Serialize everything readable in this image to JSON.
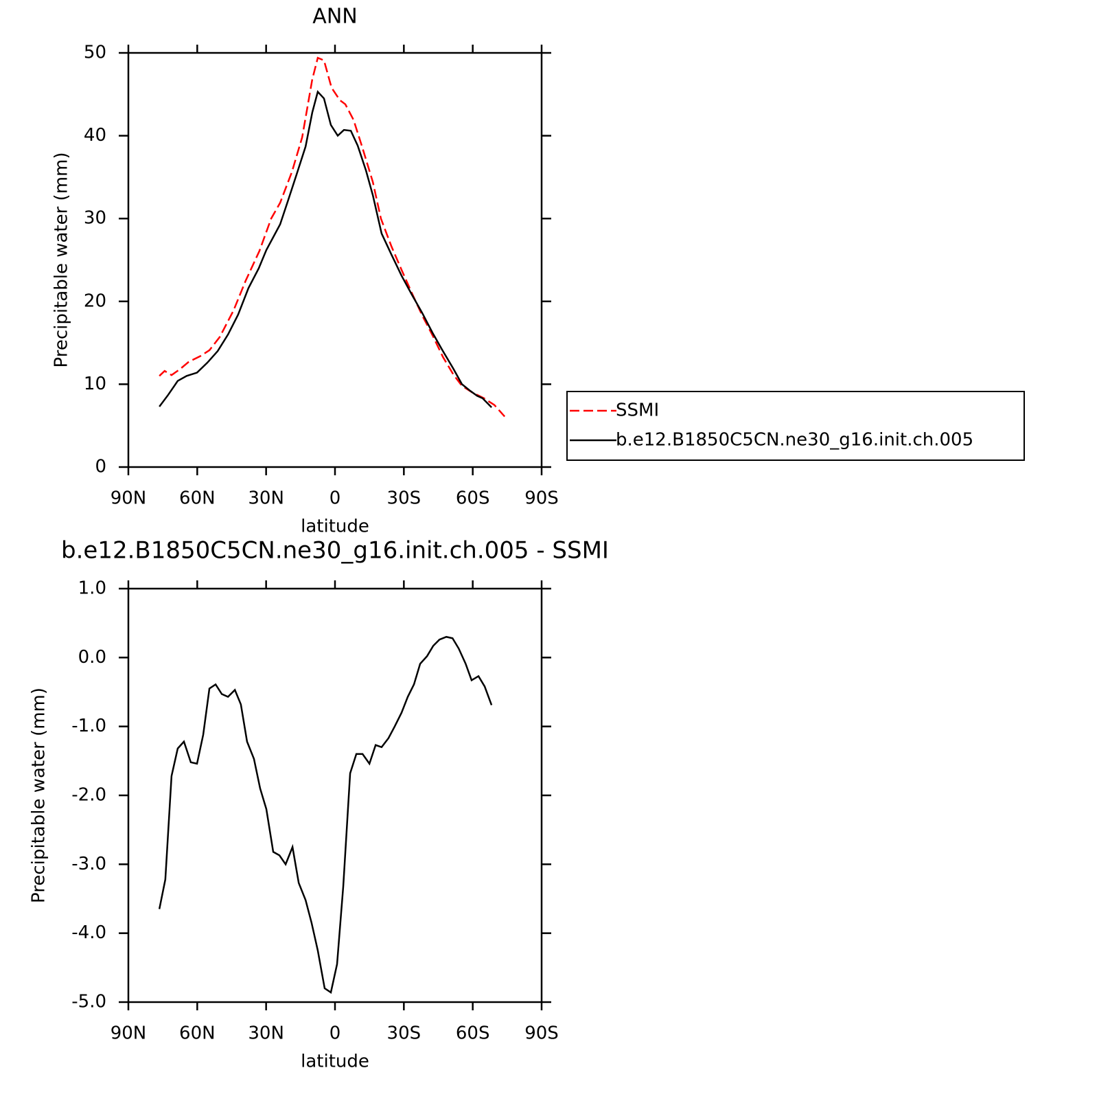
{
  "chart_data": [
    {
      "type": "line",
      "title": "ANN",
      "xlabel": "latitude",
      "ylabel": "Precipitable water (mm)",
      "xlim": [
        90,
        -90
      ],
      "xticks": [
        {
          "value": 90,
          "label": "90N"
        },
        {
          "value": 60,
          "label": "60N"
        },
        {
          "value": 30,
          "label": "30N"
        },
        0,
        {
          "value": -30,
          "label": "30S"
        },
        {
          "value": -60,
          "label": "60S"
        },
        {
          "value": -90,
          "label": "90S"
        }
      ],
      "ylim": [
        0,
        50
      ],
      "yticks": [
        0,
        10,
        20,
        30,
        40,
        50
      ],
      "legend": "right",
      "series": [
        {
          "name": "SSMI",
          "color": "#ff0000",
          "linestyle": "dashed",
          "x": [
            76.5,
            74.2,
            71.2,
            67.6,
            63.7,
            58.6,
            54.7,
            50.2,
            44.2,
            38.9,
            32.9,
            27.8,
            23.9,
            18.8,
            14.3,
            9.9,
            7.5,
            4.8,
            1.5,
            -2.1,
            -4.5,
            -8.1,
            -12.0,
            -16.5,
            -20.0,
            -24.5,
            -29.0,
            -33.5,
            -38.0,
            -42.5,
            -47.0,
            -51.5,
            -55.3,
            -59.8,
            -64.9,
            -69.4,
            -73.9
          ],
          "values": [
            11.0,
            11.6,
            11.1,
            11.8,
            12.7,
            13.4,
            14.1,
            15.7,
            18.9,
            22.5,
            26.1,
            30.0,
            31.9,
            35.6,
            39.8,
            46.8,
            49.4,
            49.1,
            45.8,
            44.3,
            43.8,
            41.9,
            38.5,
            34.4,
            30.0,
            26.7,
            23.8,
            21.0,
            18.3,
            15.9,
            13.3,
            11.2,
            9.8,
            9.0,
            8.3,
            7.5,
            6.1
          ]
        },
        {
          "name": "b.e12.B1850C5CN.ne30_g16.init.ch.005",
          "color": "#000000",
          "linestyle": "solid",
          "x": [
            76.5,
            72.7,
            68.5,
            64.6,
            60.1,
            55.6,
            51.1,
            46.6,
            42.2,
            37.7,
            33.2,
            29.9,
            23.9,
            20.3,
            16.4,
            12.8,
            9.9,
            7.5,
            4.8,
            1.8,
            -1.2,
            -3.9,
            -6.9,
            -9.9,
            -13.5,
            -16.5,
            -20.3,
            -24.5,
            -29.0,
            -33.5,
            -38.0,
            -42.5,
            -47.0,
            -51.5,
            -55.3,
            -58.9,
            -61.9,
            -64.3,
            -68.2
          ],
          "values": [
            7.3,
            8.7,
            10.4,
            11.0,
            11.4,
            12.6,
            14.0,
            16.0,
            18.4,
            21.6,
            24.0,
            26.2,
            29.3,
            32.3,
            35.6,
            38.7,
            42.8,
            45.3,
            44.5,
            41.3,
            40.0,
            40.7,
            40.6,
            38.8,
            35.8,
            32.8,
            28.2,
            25.7,
            23.1,
            20.8,
            18.6,
            16.2,
            14.0,
            11.9,
            10.0,
            9.2,
            8.6,
            8.3,
            7.2
          ]
        }
      ]
    },
    {
      "type": "line",
      "title": "b.e12.B1850C5CN.ne30_g16.init.ch.005 - SSMI",
      "xlabel": "latitude",
      "ylabel": "Precipitable water (mm)",
      "xlim": [
        90,
        -90
      ],
      "xticks": [
        {
          "value": 90,
          "label": "90N"
        },
        {
          "value": 60,
          "label": "60N"
        },
        {
          "value": 30,
          "label": "30N"
        },
        0,
        {
          "value": -30,
          "label": "30S"
        },
        {
          "value": -60,
          "label": "60S"
        },
        {
          "value": -90,
          "label": "90S"
        }
      ],
      "ylim": [
        -5,
        1
      ],
      "yticks": [
        {
          "value": -5,
          "label": "-5.0"
        },
        {
          "value": -4,
          "label": "-4.0"
        },
        {
          "value": -3,
          "label": "-3.0"
        },
        {
          "value": -2,
          "label": "-2.0"
        },
        {
          "value": -1,
          "label": "-1.0"
        },
        {
          "value": 0,
          "label": "0.0"
        },
        {
          "value": 1,
          "label": "1.0"
        }
      ],
      "series": [
        {
          "color": "#000000",
          "linestyle": "solid",
          "x": [
            76.5,
            73.9,
            71.2,
            68.5,
            65.8,
            62.8,
            60.1,
            57.4,
            54.7,
            52.0,
            49.3,
            46.6,
            43.6,
            41.0,
            38.3,
            35.3,
            32.6,
            29.9,
            26.9,
            24.2,
            21.5,
            18.5,
            15.8,
            12.8,
            10.2,
            7.5,
            4.5,
            1.8,
            -0.9,
            -3.6,
            -6.6,
            -9.3,
            -12.0,
            -15.0,
            -17.7,
            -20.3,
            -23.3,
            -26.0,
            -29.0,
            -31.7,
            -34.4,
            -37.1,
            -40.1,
            -42.8,
            -45.5,
            -48.5,
            -51.2,
            -53.9,
            -56.9,
            -59.5,
            -62.5,
            -65.2,
            -68.2
          ],
          "values": [
            -3.65,
            -3.22,
            -1.72,
            -1.32,
            -1.22,
            -1.52,
            -1.54,
            -1.12,
            -0.45,
            -0.39,
            -0.53,
            -0.57,
            -0.47,
            -0.68,
            -1.22,
            -1.47,
            -1.9,
            -2.2,
            -2.82,
            -2.87,
            -3.0,
            -2.75,
            -3.27,
            -3.52,
            -3.85,
            -4.25,
            -4.8,
            -4.86,
            -4.45,
            -3.32,
            -1.68,
            -1.4,
            -1.4,
            -1.54,
            -1.27,
            -1.3,
            -1.17,
            -1.0,
            -0.8,
            -0.57,
            -0.39,
            -0.09,
            0.02,
            0.17,
            0.26,
            0.3,
            0.28,
            0.13,
            -0.09,
            -0.33,
            -0.27,
            -0.42,
            -0.69
          ]
        }
      ]
    }
  ]
}
